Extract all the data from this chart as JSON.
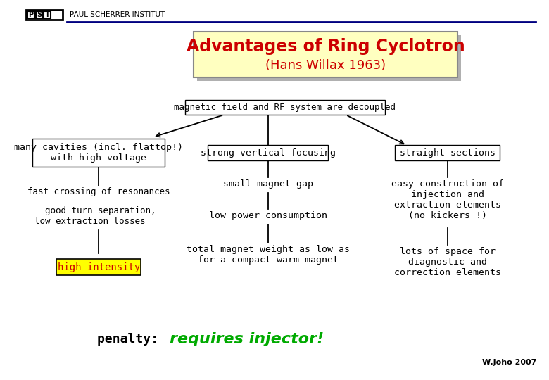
{
  "bg_color": "#ffffff",
  "title_text1": "Advantages of Ring Cyclotron",
  "title_text2": "(Hans Willax 1963)",
  "title_color1": "#cc0000",
  "title_color2": "#cc0000",
  "title_box_bg": "#ffffc0",
  "title_box_edge": "#888888",
  "header_line_color": "#000080",
  "root_text": "magnetic field and RF system are decoupled",
  "node_left": "many cavities (incl. flattop!)\nwith high voltage",
  "node_mid": "strong vertical focusing",
  "node_right": "straight sections",
  "child_left1": "fast crossing of resonances",
  "child_left2": "  good turn separation,\nlow extraction losses",
  "child_left3_text": "high intensity",
  "child_left3_bg": "#ffff00",
  "child_mid1": "small magnet gap",
  "child_mid2": "low power consumption",
  "child_mid3": "total magnet weight as low as\nfor a compact warm magnet",
  "child_right1": "easy construction of\ninjection and\nextraction elements\n(no kickers !)",
  "child_right2": "lots of space for\ndiagnostic and\ncorrection elements",
  "penalty_prefix": "penalty: ",
  "penalty_highlight": "requires injector!",
  "penalty_prefix_color": "#000000",
  "penalty_highlight_color": "#00aa00",
  "watermark": "W.Joho 2007",
  "font_family": "monospace"
}
